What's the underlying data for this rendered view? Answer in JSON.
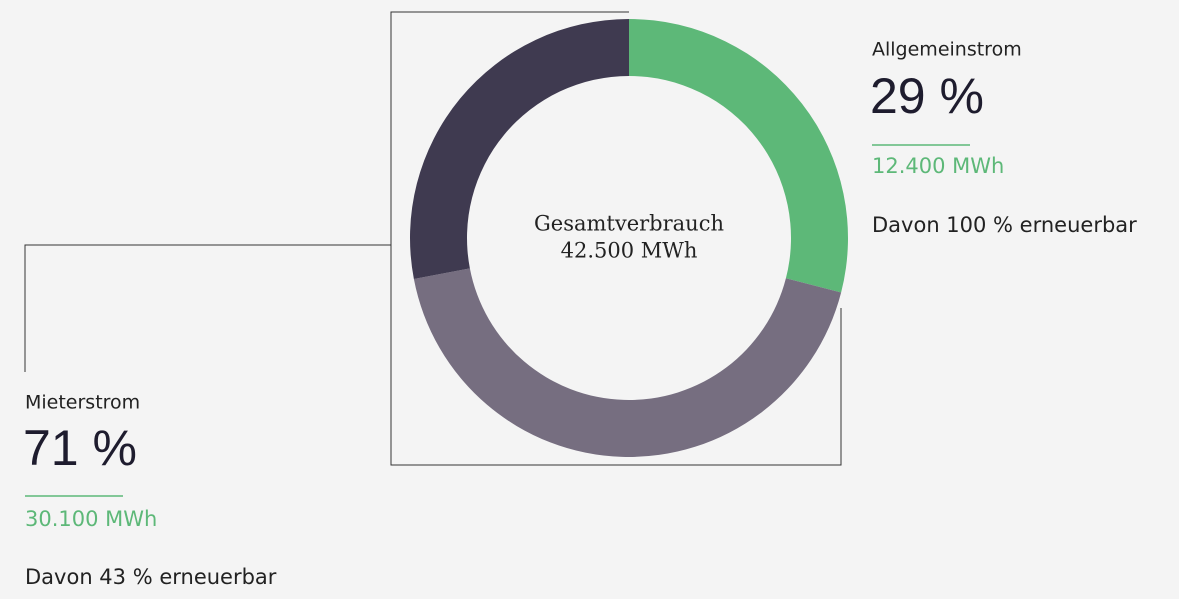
{
  "chart_data": {
    "type": "pie",
    "values": [
      29,
      43,
      28
    ],
    "colors": [
      "#5db878",
      "#766e80",
      "#3f3a50"
    ],
    "center_label": {
      "title": "Gesamtverbrauch",
      "value": "42.500 MWh"
    },
    "annotations": [
      {
        "title": "Allgemeinstrom",
        "share": "29 %",
        "amount": "12.400 MWh",
        "note": "Davon 100 % erneuerbar"
      },
      {
        "title": "Mieterstrom",
        "share": "71 %",
        "amount": "30.100 MWh",
        "note": "Davon 43 % erneuerbar"
      }
    ]
  }
}
